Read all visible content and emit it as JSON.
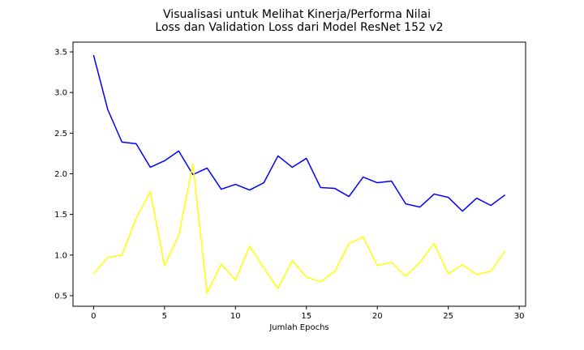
{
  "chart_data": {
    "type": "line",
    "title_lines": [
      "Visualisasi untuk Melihat Kinerja/Performa Nilai",
      "Loss dan Validation Loss dari Model ResNet 152 v2"
    ],
    "xlabel": "Jumlah Epochs",
    "ylabel": "",
    "xlim": [
      -1.45,
      30.45
    ],
    "ylim": [
      0.37,
      3.62
    ],
    "xticks": [
      0,
      5,
      10,
      15,
      20,
      25,
      30
    ],
    "xtick_labels": [
      "0",
      "5",
      "10",
      "15",
      "20",
      "25",
      "30"
    ],
    "yticks": [
      0.5,
      1.0,
      1.5,
      2.0,
      2.5,
      3.0,
      3.5
    ],
    "ytick_labels": [
      "0.5",
      "1.0",
      "1.5",
      "2.0",
      "2.5",
      "3.0",
      "3.5"
    ],
    "grid": false,
    "legend": false,
    "x": [
      0,
      1,
      2,
      3,
      4,
      5,
      6,
      7,
      8,
      9,
      10,
      11,
      12,
      13,
      14,
      15,
      16,
      17,
      18,
      19,
      20,
      21,
      22,
      23,
      24,
      25,
      26,
      27,
      28,
      29
    ],
    "series": [
      {
        "color": "#0000ff",
        "values": [
          3.46,
          2.79,
          2.39,
          2.37,
          2.08,
          2.16,
          2.28,
          1.99,
          2.07,
          1.81,
          1.87,
          1.8,
          1.89,
          2.22,
          2.08,
          2.19,
          1.83,
          1.82,
          1.72,
          1.96,
          1.89,
          1.91,
          1.63,
          1.59,
          1.75,
          1.71,
          1.54,
          1.7,
          1.61,
          1.74
        ]
      },
      {
        "color": "#ffff00",
        "values": [
          0.77,
          0.97,
          1.0,
          1.45,
          1.78,
          0.87,
          1.24,
          2.12,
          0.53,
          0.89,
          0.69,
          1.11,
          0.84,
          0.59,
          0.93,
          0.73,
          0.67,
          0.8,
          1.14,
          1.22,
          0.87,
          0.91,
          0.74,
          0.91,
          1.14,
          0.77,
          0.88,
          0.76,
          0.8,
          1.05
        ]
      }
    ]
  }
}
